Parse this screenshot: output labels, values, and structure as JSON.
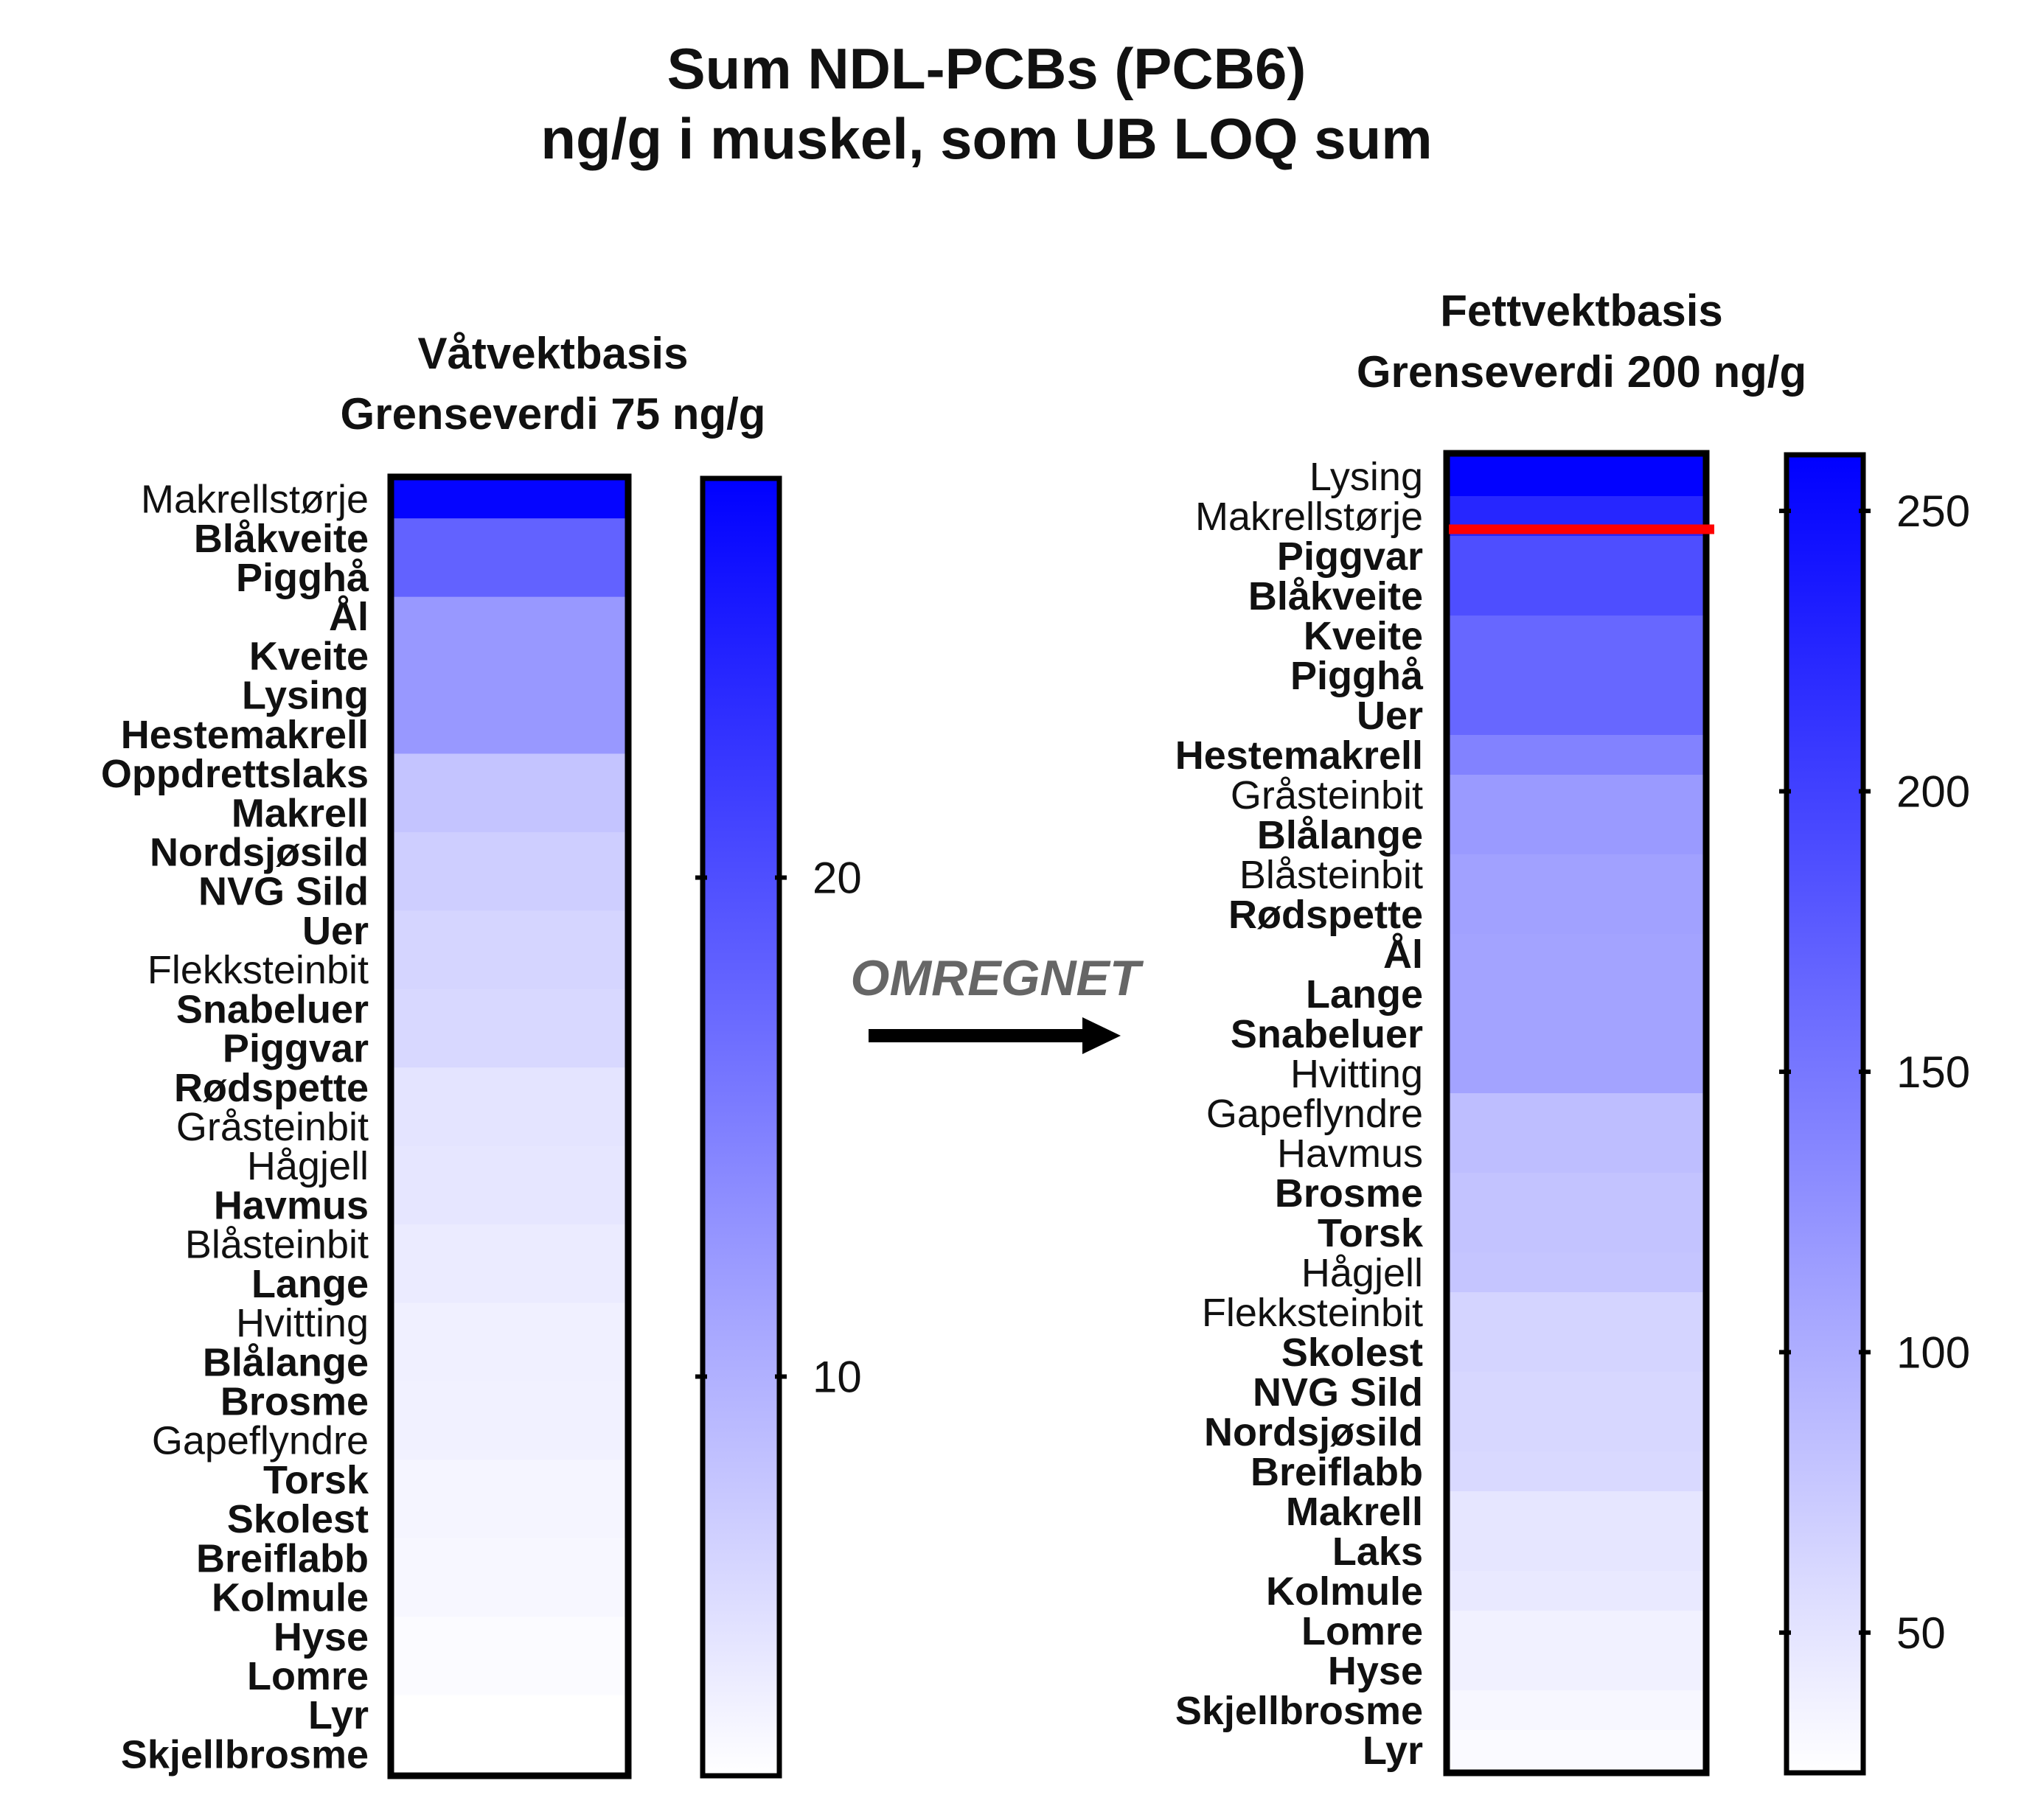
{
  "title_line1": "Sum NDL-PCBs (PCB6)",
  "title_line2": "ng/g i muskel, som UB LOQ sum",
  "arrow_label": "OMREGNET",
  "colors": {
    "max": "#0000ff",
    "min": "#ffffff",
    "limit_line": "#ff0000"
  },
  "chart_data": [
    {
      "type": "heatmap",
      "title_line1": "Våtvektbasis",
      "title_line2": "Grenseverdi 75 ng/g",
      "colorbar_ticks": [
        10,
        20
      ],
      "colorbar_range": [
        2,
        28
      ],
      "rows": [
        {
          "label": "Makrellstørje",
          "bold": false,
          "value": 27.5
        },
        {
          "label": "Blåkveite",
          "bold": true,
          "value": 18.0
        },
        {
          "label": "Pigghå",
          "bold": true,
          "value": 18.0
        },
        {
          "label": "Ål",
          "bold": true,
          "value": 12.5
        },
        {
          "label": "Kveite",
          "bold": true,
          "value": 12.5
        },
        {
          "label": "Lysing",
          "bold": true,
          "value": 12.5
        },
        {
          "label": "Hestemakrell",
          "bold": true,
          "value": 12.5
        },
        {
          "label": "Oppdrettslaks",
          "bold": true,
          "value": 8.0
        },
        {
          "label": "Makrell",
          "bold": true,
          "value": 8.0
        },
        {
          "label": "Nordsjøsild",
          "bold": true,
          "value": 7.0
        },
        {
          "label": "NVG Sild",
          "bold": true,
          "value": 7.0
        },
        {
          "label": "Uer",
          "bold": true,
          "value": 6.3
        },
        {
          "label": "Flekksteinbit",
          "bold": false,
          "value": 6.3
        },
        {
          "label": "Snabeluer",
          "bold": true,
          "value": 6.0
        },
        {
          "label": "Piggvar",
          "bold": true,
          "value": 6.0
        },
        {
          "label": "Rødspette",
          "bold": true,
          "value": 4.8
        },
        {
          "label": "Gråsteinbit",
          "bold": false,
          "value": 4.8
        },
        {
          "label": "Hågjell",
          "bold": false,
          "value": 4.5
        },
        {
          "label": "Havmus",
          "bold": true,
          "value": 4.5
        },
        {
          "label": "Blåsteinbit",
          "bold": false,
          "value": 4.0
        },
        {
          "label": "Lange",
          "bold": true,
          "value": 4.0
        },
        {
          "label": "Hvitting",
          "bold": false,
          "value": 3.5
        },
        {
          "label": "Blålange",
          "bold": true,
          "value": 3.5
        },
        {
          "label": "Brosme",
          "bold": true,
          "value": 3.4
        },
        {
          "label": "Gapeflyndre",
          "bold": false,
          "value": 3.4
        },
        {
          "label": "Torsk",
          "bold": true,
          "value": 3.0
        },
        {
          "label": "Skolest",
          "bold": true,
          "value": 3.0
        },
        {
          "label": "Breiflabb",
          "bold": true,
          "value": 2.8
        },
        {
          "label": "Kolmule",
          "bold": true,
          "value": 2.8
        },
        {
          "label": "Hyse",
          "bold": true,
          "value": 2.4
        },
        {
          "label": "Lomre",
          "bold": true,
          "value": 2.4
        },
        {
          "label": "Lyr",
          "bold": true,
          "value": 2.0
        },
        {
          "label": "Skjellbrosme",
          "bold": true,
          "value": 2.0
        }
      ]
    },
    {
      "type": "heatmap",
      "title_line1": "Fettvektbasis",
      "title_line2": "Grenseverdi 200 ng/g",
      "colorbar_ticks": [
        50,
        100,
        150,
        200,
        250
      ],
      "colorbar_range": [
        25,
        260
      ],
      "limit_value": 200,
      "rows": [
        {
          "label": "Lysing",
          "bold": false,
          "value": 258
        },
        {
          "label": "Makrellstørje",
          "bold": false,
          "value": 225
        },
        {
          "label": "Piggvar",
          "bold": true,
          "value": 188
        },
        {
          "label": "Blåkveite",
          "bold": true,
          "value": 188
        },
        {
          "label": "Kveite",
          "bold": true,
          "value": 165
        },
        {
          "label": "Pigghå",
          "bold": true,
          "value": 165
        },
        {
          "label": "Uer",
          "bold": true,
          "value": 165
        },
        {
          "label": "Hestemakrell",
          "bold": true,
          "value": 140
        },
        {
          "label": "Gråsteinbit",
          "bold": false,
          "value": 118
        },
        {
          "label": "Blålange",
          "bold": true,
          "value": 118
        },
        {
          "label": "Blåsteinbit",
          "bold": false,
          "value": 112
        },
        {
          "label": "Rødspette",
          "bold": true,
          "value": 112
        },
        {
          "label": "Ål",
          "bold": true,
          "value": 110
        },
        {
          "label": "Lange",
          "bold": true,
          "value": 110
        },
        {
          "label": "Snabeluer",
          "bold": true,
          "value": 110
        },
        {
          "label": "Hvitting",
          "bold": false,
          "value": 110
        },
        {
          "label": "Gapeflyndre",
          "bold": false,
          "value": 85
        },
        {
          "label": "Havmus",
          "bold": false,
          "value": 85
        },
        {
          "label": "Brosme",
          "bold": true,
          "value": 80
        },
        {
          "label": "Torsk",
          "bold": true,
          "value": 80
        },
        {
          "label": "Hågjell",
          "bold": false,
          "value": 78
        },
        {
          "label": "Flekksteinbit",
          "bold": false,
          "value": 65
        },
        {
          "label": "Skolest",
          "bold": true,
          "value": 65
        },
        {
          "label": "NVG Sild",
          "bold": true,
          "value": 62
        },
        {
          "label": "Nordsjøsild",
          "bold": true,
          "value": 62
        },
        {
          "label": "Breiflabb",
          "bold": true,
          "value": 60
        },
        {
          "label": "Makrell",
          "bold": true,
          "value": 48
        },
        {
          "label": "Laks",
          "bold": true,
          "value": 48
        },
        {
          "label": "Kolmule",
          "bold": true,
          "value": 45
        },
        {
          "label": "Lomre",
          "bold": true,
          "value": 38
        },
        {
          "label": "Hyse",
          "bold": true,
          "value": 38
        },
        {
          "label": "Skjellbrosme",
          "bold": true,
          "value": 32
        },
        {
          "label": "Lyr",
          "bold": true,
          "value": 30
        }
      ]
    }
  ]
}
